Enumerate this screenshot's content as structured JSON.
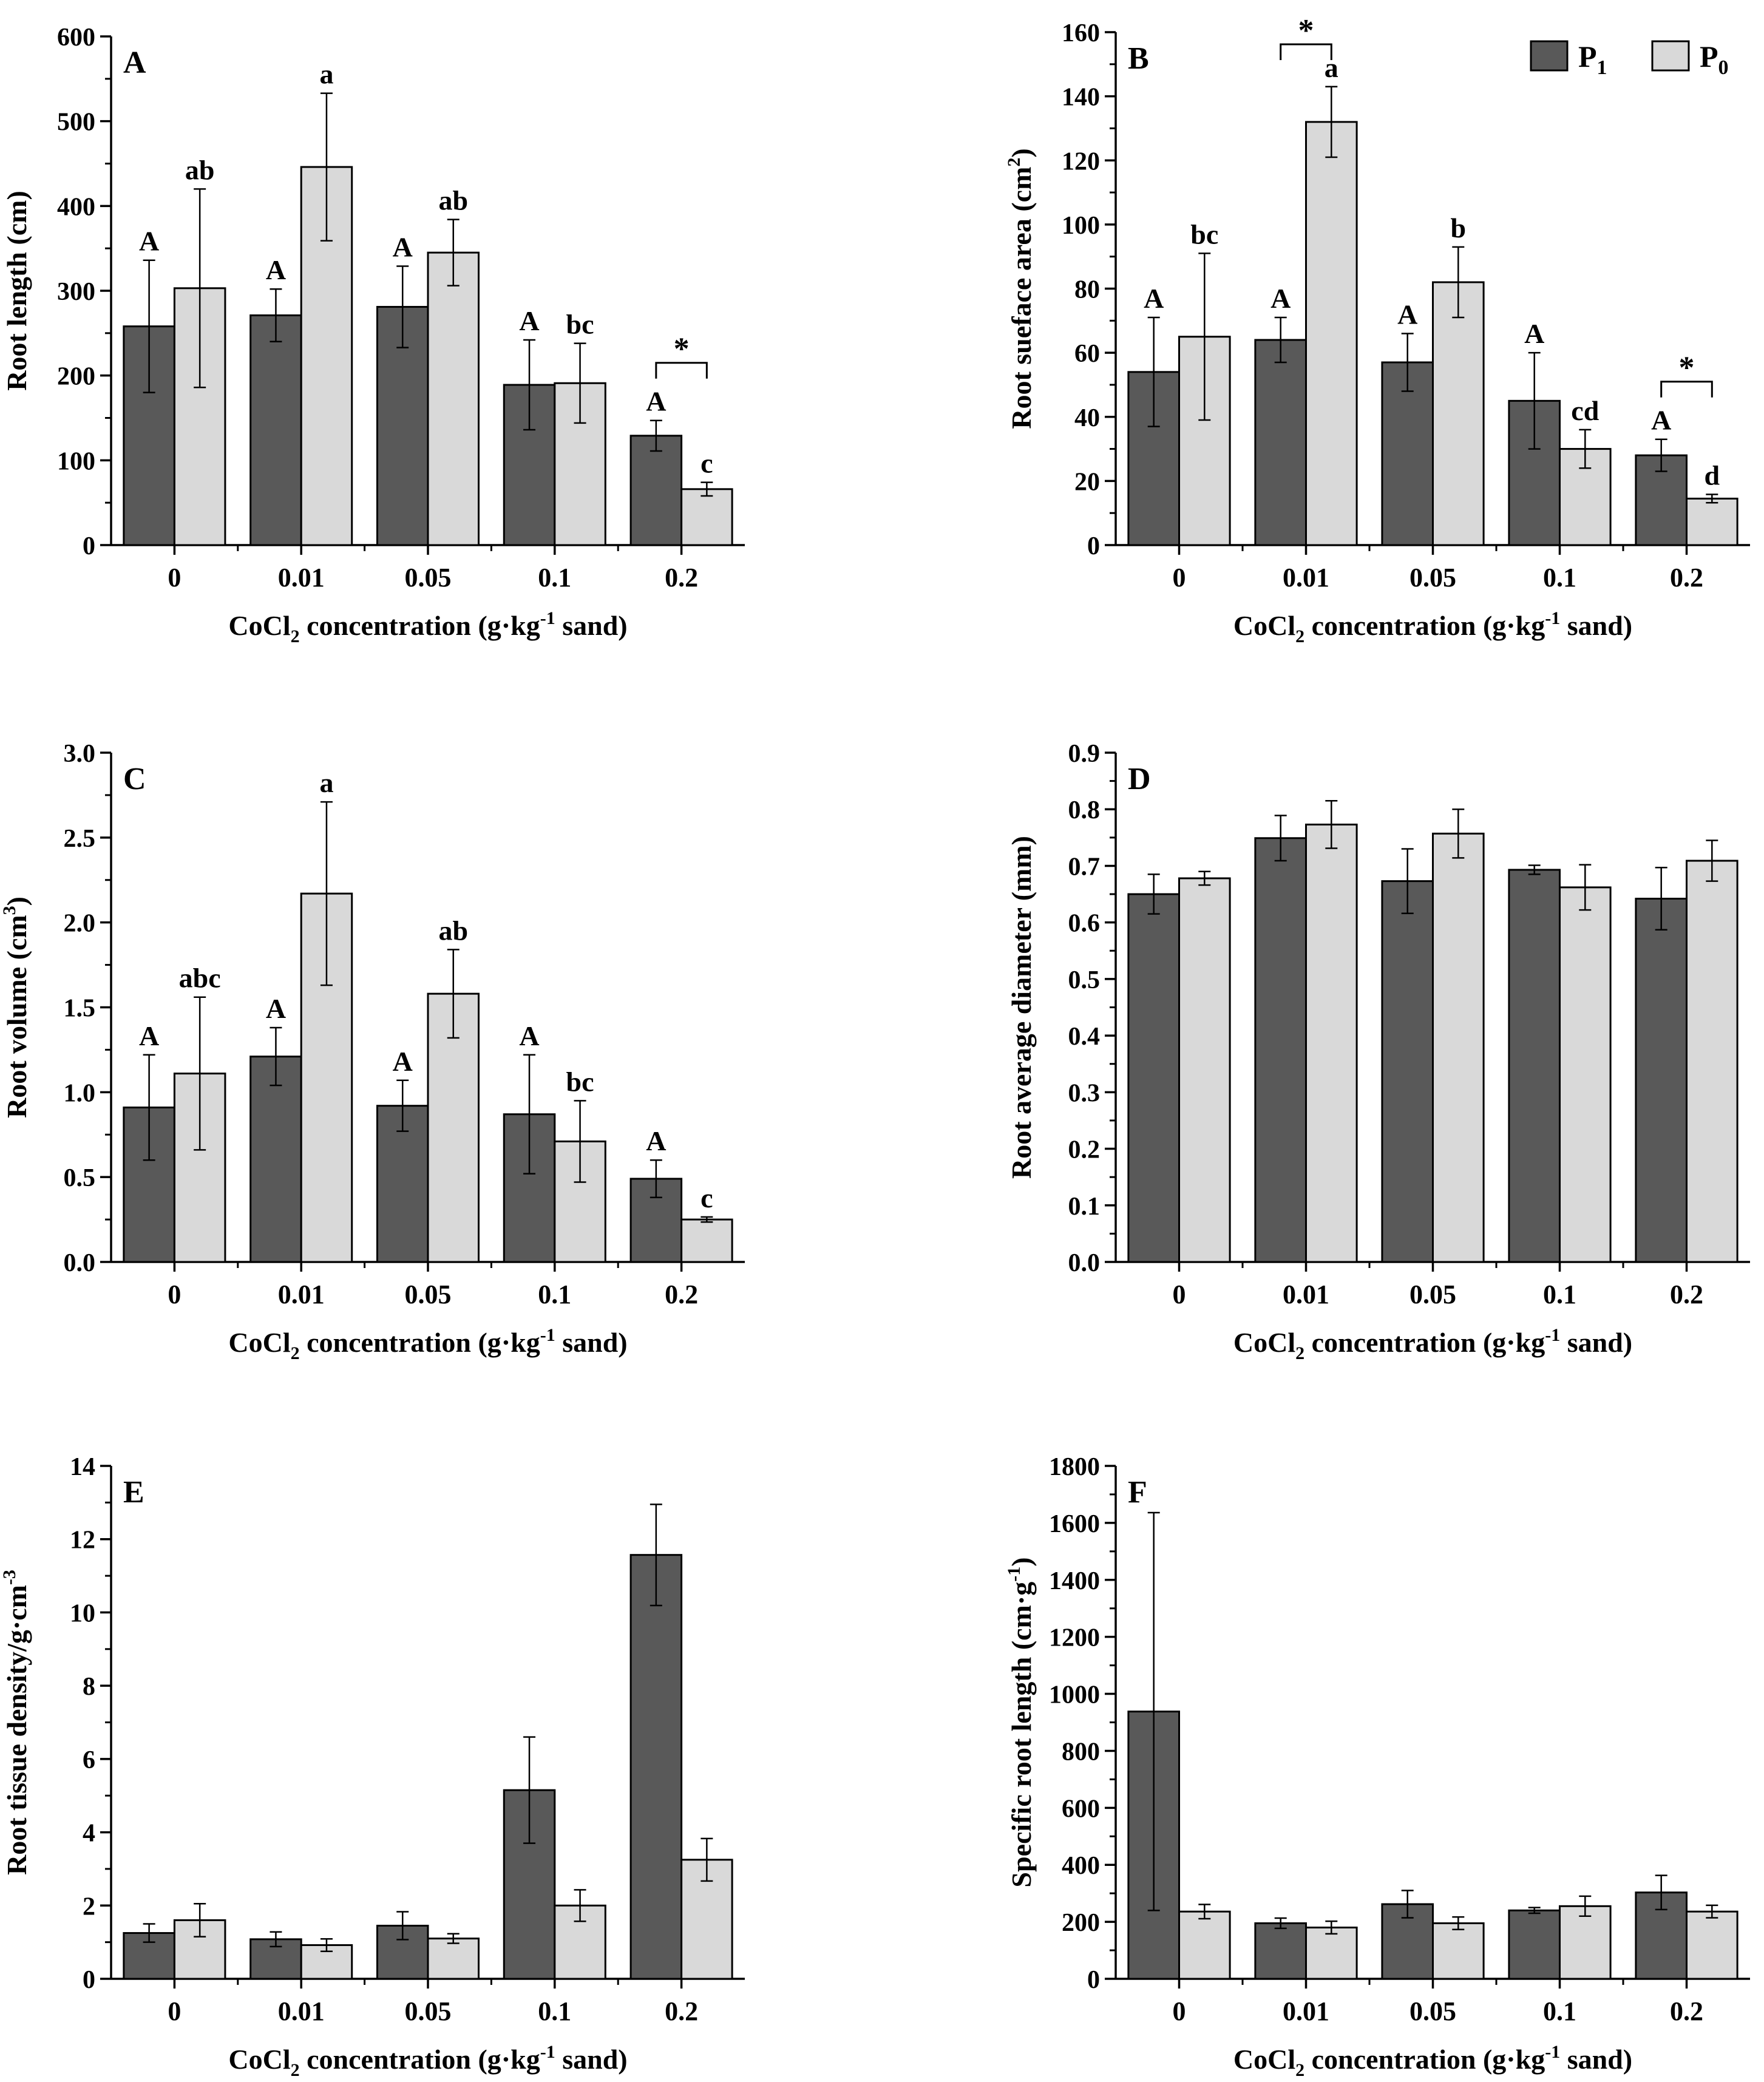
{
  "figure": {
    "legend": {
      "items": [
        {
          "label": "P",
          "sub": "1",
          "color": "#595959"
        },
        {
          "label": "P",
          "sub": "0",
          "color": "#d9d9d9"
        }
      ]
    },
    "colors": {
      "p1": "#595959",
      "p0": "#d9d9d9",
      "axis": "#000000"
    }
  },
  "chart_data": [
    {
      "id": "A",
      "type": "bar",
      "panel_label": "A",
      "ylabel": {
        "text": "Root length (cm)"
      },
      "xlabel": {
        "pre": "CoCl",
        "sub": "2",
        "mid": " concentration (g·kg",
        "sup": "-1",
        "post": " sand)"
      },
      "categories": [
        "0",
        "0.01",
        "0.05",
        "0.1",
        "0.2"
      ],
      "ylim": [
        0,
        600
      ],
      "yticks": [
        "0",
        "100",
        "200",
        "300",
        "400",
        "500",
        "600"
      ],
      "series": [
        {
          "name": "P1",
          "values": [
            258,
            271,
            281,
            189,
            129
          ],
          "errors": [
            78,
            31,
            48,
            53,
            18
          ],
          "letters": [
            "A",
            "A",
            "A",
            "A",
            "A"
          ]
        },
        {
          "name": "P0",
          "values": [
            303,
            446,
            345,
            191,
            66
          ],
          "errors": [
            117,
            87,
            39,
            47,
            8
          ],
          "letters": [
            "ab",
            "a",
            "ab",
            "bc",
            "c"
          ]
        }
      ],
      "significance": [
        {
          "category": "0.2",
          "label": "*"
        }
      ]
    },
    {
      "id": "B",
      "type": "bar",
      "panel_label": "B",
      "ylabel": {
        "pre": "Root sueface area (cm",
        "sup": "2",
        "post": ")"
      },
      "xlabel": {
        "pre": "CoCl",
        "sub": "2",
        "mid": " concentration (g·kg",
        "sup": "-1",
        "post": " sand)"
      },
      "categories": [
        "0",
        "0.01",
        "0.05",
        "0.1",
        "0.2"
      ],
      "ylim": [
        0,
        160
      ],
      "yticks": [
        "0",
        "20",
        "40",
        "60",
        "80",
        "100",
        "120",
        "140",
        "160"
      ],
      "series": [
        {
          "name": "P1",
          "values": [
            54,
            64,
            57,
            45,
            28
          ],
          "errors": [
            17,
            7,
            9,
            15,
            5
          ],
          "letters": [
            "A",
            "A",
            "A",
            "A",
            "A"
          ]
        },
        {
          "name": "P0",
          "values": [
            65,
            132,
            82,
            30,
            14.5
          ],
          "errors": [
            26,
            11,
            11,
            6,
            1.3
          ],
          "letters": [
            "bc",
            "a",
            "b",
            "cd",
            "d"
          ]
        }
      ],
      "significance": [
        {
          "category": "0.01",
          "label": "*"
        },
        {
          "category": "0.2",
          "label": "*"
        }
      ]
    },
    {
      "id": "C",
      "type": "bar",
      "panel_label": "C",
      "ylabel": {
        "pre": "Root volume (cm",
        "sup": "3",
        "post": ")"
      },
      "xlabel": {
        "pre": "CoCl",
        "sub": "2",
        "mid": " concentration (g·kg",
        "sup": "-1",
        "post": " sand)"
      },
      "categories": [
        "0",
        "0.01",
        "0.05",
        "0.1",
        "0.2"
      ],
      "ylim": [
        0,
        3.0
      ],
      "yticks": [
        "0.0",
        "0.5",
        "1.0",
        "1.5",
        "2.0",
        "2.5",
        "3.0"
      ],
      "series": [
        {
          "name": "P1",
          "values": [
            0.91,
            1.21,
            0.92,
            0.87,
            0.49
          ],
          "errors": [
            0.31,
            0.17,
            0.15,
            0.35,
            0.11
          ],
          "letters": [
            "A",
            "A",
            "A",
            "A",
            "A"
          ]
        },
        {
          "name": "P0",
          "values": [
            1.11,
            2.17,
            1.58,
            0.71,
            0.25
          ],
          "errors": [
            0.45,
            0.54,
            0.26,
            0.24,
            0.015
          ],
          "letters": [
            "abc",
            "a",
            "ab",
            "bc",
            "c"
          ]
        }
      ],
      "significance": []
    },
    {
      "id": "D",
      "type": "bar",
      "panel_label": "D",
      "ylabel": {
        "text": "Root average diameter (mm)"
      },
      "xlabel": {
        "pre": "CoCl",
        "sub": "2",
        "mid": " concentration (g·kg",
        "sup": "-1",
        "post": " sand)"
      },
      "categories": [
        "0",
        "0.01",
        "0.05",
        "0.1",
        "0.2"
      ],
      "ylim": [
        0,
        0.9
      ],
      "yticks": [
        "0.0",
        "0.1",
        "0.2",
        "0.3",
        "0.4",
        "0.5",
        "0.6",
        "0.7",
        "0.8",
        "0.9"
      ],
      "series": [
        {
          "name": "P1",
          "values": [
            0.65,
            0.749,
            0.673,
            0.693,
            0.642
          ],
          "errors": [
            0.035,
            0.04,
            0.057,
            0.008,
            0.055
          ],
          "letters": []
        },
        {
          "name": "P0",
          "values": [
            0.678,
            0.773,
            0.757,
            0.662,
            0.709
          ],
          "errors": [
            0.012,
            0.042,
            0.043,
            0.04,
            0.036
          ],
          "letters": []
        }
      ],
      "significance": []
    },
    {
      "id": "E",
      "type": "bar",
      "panel_label": "E",
      "ylabel": {
        "pre": "Root tissue density/g·cm",
        "sup": "-3",
        "post": ""
      },
      "xlabel": {
        "pre": "CoCl",
        "sub": "2",
        "mid": " concentration (g·kg",
        "sup": "-1",
        "post": " sand)"
      },
      "categories": [
        "0",
        "0.01",
        "0.05",
        "0.1",
        "0.2"
      ],
      "ylim": [
        0,
        14
      ],
      "yticks": [
        "0",
        "2",
        "4",
        "6",
        "8",
        "10",
        "12",
        "14"
      ],
      "series": [
        {
          "name": "P1",
          "values": [
            1.25,
            1.08,
            1.45,
            5.15,
            11.57
          ],
          "errors": [
            0.25,
            0.2,
            0.38,
            1.45,
            1.38
          ],
          "letters": []
        },
        {
          "name": "P0",
          "values": [
            1.6,
            0.92,
            1.1,
            2.0,
            3.25
          ],
          "errors": [
            0.45,
            0.17,
            0.13,
            0.43,
            0.58
          ],
          "letters": []
        }
      ],
      "significance": []
    },
    {
      "id": "F",
      "type": "bar",
      "panel_label": "F",
      "ylabel": {
        "pre": "Specific root length (cm·g",
        "sup": "-1",
        "post": ")"
      },
      "xlabel": {
        "pre": "CoCl",
        "sub": "2",
        "mid": " concentration (g·kg",
        "sup": "-1",
        "post": " sand)"
      },
      "categories": [
        "0",
        "0.01",
        "0.05",
        "0.1",
        "0.2"
      ],
      "ylim": [
        0,
        1800
      ],
      "yticks": [
        "0",
        "200",
        "400",
        "600",
        "800",
        "1000",
        "1200",
        "1400",
        "1600",
        "1800"
      ],
      "series": [
        {
          "name": "P1",
          "values": [
            938,
            195,
            262,
            240,
            303
          ],
          "errors": [
            698,
            18,
            48,
            10,
            60
          ],
          "letters": []
        },
        {
          "name": "P0",
          "values": [
            236,
            180,
            195,
            255,
            236
          ],
          "errors": [
            25,
            22,
            22,
            35,
            22
          ],
          "letters": []
        }
      ],
      "significance": []
    }
  ]
}
